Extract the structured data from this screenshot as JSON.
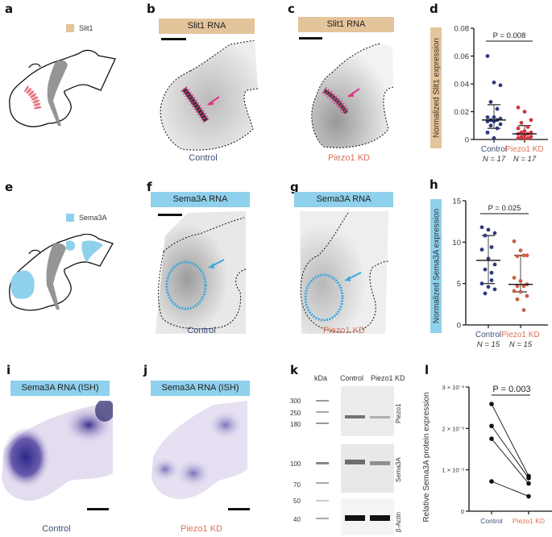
{
  "panels": {
    "a": {
      "letter": "a",
      "legend": "Slit1",
      "legend_color": "#e4c49a"
    },
    "b": {
      "letter": "b",
      "banner": "Slit1 RNA",
      "condition": "Control"
    },
    "c": {
      "letter": "c",
      "banner": "Slit1 RNA",
      "condition": "Piezo1 KD"
    },
    "d": {
      "letter": "d"
    },
    "e": {
      "letter": "e",
      "legend": "Sema3A",
      "legend_color": "#8fd0ec"
    },
    "f": {
      "letter": "f",
      "banner": "Sema3A RNA",
      "condition": "Control"
    },
    "g": {
      "letter": "g",
      "banner": "Sema3A RNA",
      "condition": "Piezo1 KD"
    },
    "h": {
      "letter": "h"
    },
    "i": {
      "letter": "i",
      "banner": "Sema3A RNA (ISH)",
      "condition": "Control"
    },
    "j": {
      "letter": "j",
      "banner": "Sema3A RNA (ISH)",
      "condition": "Piezo1 KD"
    },
    "k": {
      "letter": "k",
      "kda_header": "kDa",
      "lane_labels": [
        "Control",
        "Piezo1 KD"
      ],
      "markers": [
        "300",
        "250",
        "180",
        "100",
        "70",
        "50",
        "40"
      ],
      "blot_labels": [
        "Piezo1",
        "Sema3A",
        "β-Actin"
      ]
    },
    "l": {
      "letter": "l"
    }
  },
  "colors": {
    "control": "#2e3a7c",
    "piezo_d": "#d4363f",
    "piezo_h": "#c8603f",
    "slit_banner": "#e4c49a",
    "sema_banner": "#8fd0ec",
    "control_text": "#3d4f7a",
    "kd_text": "#d9735a",
    "magenta_outline": "#e0338a",
    "cyan_outline": "#3aa8dc"
  },
  "chart_data": [
    {
      "id": "d",
      "type": "scatter",
      "title": "",
      "ylabel": "Normalized Slit1 expression",
      "ylim": [
        0,
        0.08
      ],
      "yticks": [
        "0",
        "0.02",
        "0.04",
        "0.06",
        "0.08"
      ],
      "ytick_values": [
        0,
        0.02,
        0.04,
        0.06,
        0.08
      ],
      "categories": [
        "Control",
        "Piezo1 KD"
      ],
      "n_labels": [
        "N = 17",
        "N = 17"
      ],
      "pvalue": "P = 0.008",
      "series": [
        {
          "name": "Control",
          "median": 0.014,
          "q1": 0.008,
          "q3": 0.025,
          "values": [
            0.06,
            0.041,
            0.039,
            0.027,
            0.022,
            0.016,
            0.016,
            0.015,
            0.014,
            0.014,
            0.013,
            0.013,
            0.011,
            0.01,
            0.008,
            0.005,
            0.001
          ]
        },
        {
          "name": "Piezo1 KD",
          "median": 0.004,
          "q1": 0.001,
          "q3": 0.01,
          "values": [
            0.023,
            0.02,
            0.014,
            0.012,
            0.009,
            0.008,
            0.006,
            0.005,
            0.005,
            0.004,
            0.004,
            0.003,
            0.002,
            0.002,
            0.001,
            0.001,
            0.0005
          ]
        }
      ]
    },
    {
      "id": "h",
      "type": "scatter",
      "title": "",
      "ylabel": "Normalized Sema3A expression",
      "ylim": [
        0,
        15
      ],
      "yticks": [
        "0",
        "5",
        "10",
        "15"
      ],
      "ytick_values": [
        0,
        5,
        10,
        15
      ],
      "categories": [
        "Control",
        "Piezo1 KD"
      ],
      "n_labels": [
        "N = 15",
        "N = 15"
      ],
      "pvalue": "P = 0.025",
      "series": [
        {
          "name": "Control",
          "median": 7.8,
          "q1": 5.0,
          "q3": 10.8,
          "values": [
            11.8,
            11.5,
            11.1,
            10.8,
            9.4,
            9.1,
            8.0,
            7.3,
            6.7,
            6.3,
            5.0,
            4.6,
            4.3,
            3.8,
            5.4
          ]
        },
        {
          "name": "Piezo1 KD",
          "median": 4.9,
          "q1": 4.0,
          "q3": 8.4,
          "values": [
            10.1,
            9.0,
            8.4,
            8.3,
            8.4,
            5.7,
            5.3,
            4.9,
            4.7,
            4.7,
            4.1,
            4.0,
            3.5,
            3.1,
            1.8
          ]
        }
      ]
    },
    {
      "id": "l",
      "type": "line",
      "title": "",
      "ylabel": "Relative Sema3A protein expression",
      "ylim": [
        0,
        0.003
      ],
      "yticks": [
        "0",
        "1 × 10⁻³",
        "2 × 10⁻³",
        "3 × 10⁻³"
      ],
      "ytick_values": [
        0,
        0.001,
        0.002,
        0.003
      ],
      "categories": [
        "Control",
        "Piezo1 KD"
      ],
      "pvalue": "P = 0.003",
      "pairs": [
        [
          0.00259,
          0.00085
        ],
        [
          0.00206,
          0.0008
        ],
        [
          0.00175,
          0.00067
        ],
        [
          0.00072,
          0.00036
        ]
      ]
    }
  ]
}
